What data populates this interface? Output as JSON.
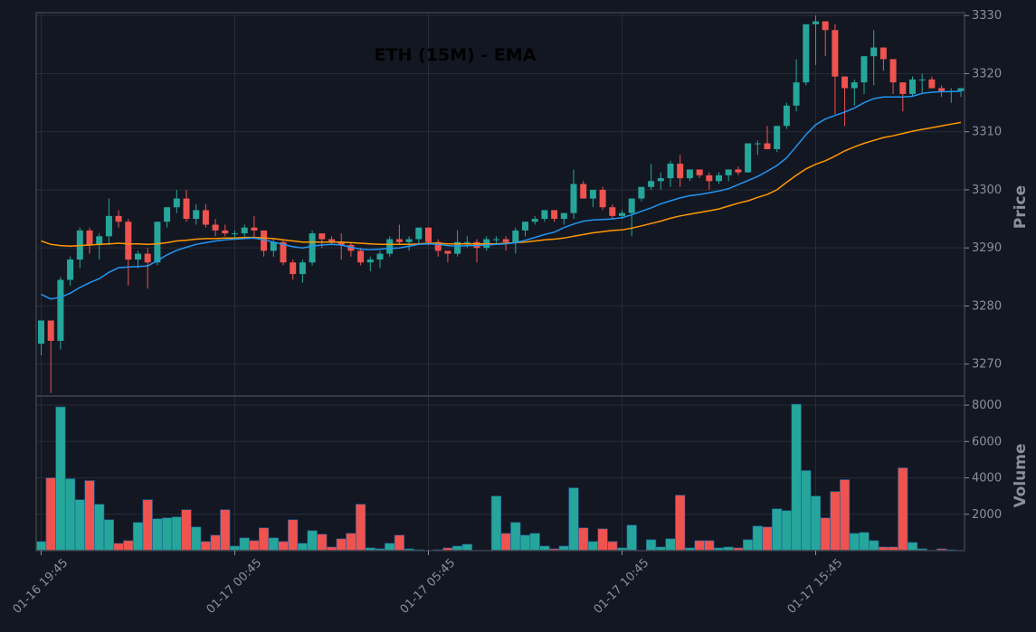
{
  "chart_data": {
    "type": "candlestick",
    "title": "ETH (15M) - EMA",
    "ylabel_price": "Price",
    "ylabel_volume": "Volume",
    "price_ylim": [
      3264.5,
      3330.5
    ],
    "price_ticks": [
      3270,
      3280,
      3290,
      3300,
      3310,
      3320,
      3330
    ],
    "volume_ylim": [
      0,
      8500
    ],
    "volume_ticks": [
      2000,
      4000,
      6000,
      8000
    ],
    "x_tick_labels": [
      {
        "index": 0,
        "label": "01-16 19:45"
      },
      {
        "index": 20,
        "label": "01-17 00:45"
      },
      {
        "index": 40,
        "label": "01-17 05:45"
      },
      {
        "index": 60,
        "label": "01-17 10:45"
      },
      {
        "index": 80,
        "label": "01-17 15:45"
      }
    ],
    "grid": true,
    "colors": {
      "up": "#26a69a",
      "down": "#ef5350",
      "ema_fast": "#2196f3",
      "ema_slow": "#ff9800",
      "background": "#131722"
    },
    "candles": [
      [
        3273.5,
        3277.5,
        3271.5,
        3277.5
      ],
      [
        3277.5,
        3277.5,
        3265,
        3274
      ],
      [
        3274,
        3285,
        3272.5,
        3284.5
      ],
      [
        3284.5,
        3288.5,
        3283.5,
        3288
      ],
      [
        3288,
        3293.5,
        3286.5,
        3293
      ],
      [
        3293,
        3293.5,
        3289,
        3290.5
      ],
      [
        3290.5,
        3292.5,
        3288,
        3292
      ],
      [
        3292,
        3298.5,
        3290.5,
        3295.5
      ],
      [
        3295.5,
        3296.5,
        3293.5,
        3294.5
      ],
      [
        3294.5,
        3295,
        3283.5,
        3288
      ],
      [
        3288,
        3289.5,
        3286.5,
        3289
      ],
      [
        3289,
        3290,
        3283,
        3287.5
      ],
      [
        3287.5,
        3294.5,
        3287,
        3294.5
      ],
      [
        3294.5,
        3297,
        3293.5,
        3297
      ],
      [
        3297,
        3300,
        3296,
        3298.5
      ],
      [
        3298.5,
        3300,
        3294.5,
        3295
      ],
      [
        3295,
        3297.5,
        3294,
        3296.5
      ],
      [
        3296.5,
        3297.5,
        3293.5,
        3294
      ],
      [
        3294,
        3295,
        3292,
        3293
      ],
      [
        3293,
        3294,
        3292,
        3292.5
      ],
      [
        3292.5,
        3293,
        3291.5,
        3292.5
      ],
      [
        3292.5,
        3294,
        3292,
        3293.5
      ],
      [
        3293.5,
        3295.5,
        3291.5,
        3293
      ],
      [
        3293,
        3293,
        3288.5,
        3289.5
      ],
      [
        3289.5,
        3291.5,
        3288.5,
        3291
      ],
      [
        3291,
        3291.5,
        3287,
        3287.5
      ],
      [
        3287.5,
        3288,
        3284.5,
        3285.5
      ],
      [
        3285.5,
        3288,
        3284,
        3287.5
      ],
      [
        3287.5,
        3293,
        3287,
        3292.5
      ],
      [
        3292.5,
        3292.5,
        3290,
        3291.5
      ],
      [
        3291.5,
        3292,
        3290.5,
        3291
      ],
      [
        3291,
        3292.5,
        3288,
        3290.5
      ],
      [
        3290.5,
        3291,
        3288.5,
        3289.5
      ],
      [
        3289.5,
        3290,
        3287,
        3287.5
      ],
      [
        3287.5,
        3288.5,
        3286,
        3288
      ],
      [
        3288,
        3289.5,
        3286.5,
        3289
      ],
      [
        3289,
        3292,
        3288.5,
        3291.5
      ],
      [
        3291.5,
        3294,
        3290.5,
        3291
      ],
      [
        3291,
        3292,
        3289.5,
        3291.5
      ],
      [
        3291.5,
        3293.5,
        3290.5,
        3293.5
      ],
      [
        3293.5,
        3293.5,
        3290.5,
        3291
      ],
      [
        3291,
        3291.5,
        3288.5,
        3289.5
      ],
      [
        3289.5,
        3289.5,
        3287.5,
        3289
      ],
      [
        3289,
        3293,
        3288.5,
        3291
      ],
      [
        3291,
        3292,
        3290,
        3291
      ],
      [
        3291,
        3291.5,
        3287.5,
        3290
      ],
      [
        3290,
        3292,
        3289.5,
        3291.5
      ],
      [
        3291.5,
        3292,
        3290.5,
        3291.5
      ],
      [
        3291.5,
        3292,
        3289.5,
        3291
      ],
      [
        3291,
        3293.5,
        3289,
        3293
      ],
      [
        3293,
        3294.5,
        3292,
        3294.5
      ],
      [
        3294.5,
        3295.5,
        3294,
        3295
      ],
      [
        3295,
        3296.5,
        3294.5,
        3296.5
      ],
      [
        3296.5,
        3296.5,
        3294.5,
        3295
      ],
      [
        3295,
        3296,
        3294,
        3296
      ],
      [
        3296,
        3303.5,
        3295,
        3301
      ],
      [
        3301,
        3301.5,
        3298.5,
        3298.5
      ],
      [
        3298.5,
        3300,
        3297,
        3300
      ],
      [
        3300,
        3300.5,
        3296.5,
        3297
      ],
      [
        3297,
        3297.5,
        3295,
        3295.5
      ],
      [
        3295.5,
        3296.5,
        3295,
        3296
      ],
      [
        3296,
        3298.5,
        3292,
        3298.5
      ],
      [
        3298.5,
        3300.5,
        3298,
        3300.5
      ],
      [
        3300.5,
        3304.5,
        3300,
        3301.5
      ],
      [
        3301.5,
        3303,
        3300,
        3302
      ],
      [
        3302,
        3305,
        3300.5,
        3304.5
      ],
      [
        3304.5,
        3306,
        3300.5,
        3302
      ],
      [
        3302,
        3303.5,
        3301.5,
        3303.5
      ],
      [
        3303.5,
        3303.5,
        3302,
        3302.5
      ],
      [
        3302.5,
        3303,
        3300,
        3301.5
      ],
      [
        3301.5,
        3303,
        3301,
        3302.5
      ],
      [
        3302.5,
        3303.5,
        3301.5,
        3303.5
      ],
      [
        3303.5,
        3304,
        3302.5,
        3303
      ],
      [
        3303,
        3308,
        3303,
        3308
      ],
      [
        3308,
        3308.5,
        3306,
        3308
      ],
      [
        3308,
        3311,
        3307,
        3307
      ],
      [
        3307,
        3311,
        3306.5,
        3311
      ],
      [
        3311,
        3315,
        3310.5,
        3314.5
      ],
      [
        3314.5,
        3322.5,
        3313.5,
        3318.5
      ],
      [
        3318.5,
        3328.5,
        3318,
        3328.5
      ],
      [
        3328.5,
        3330,
        3321.5,
        3329
      ],
      [
        3329,
        3329,
        3323,
        3327.5
      ],
      [
        3327.5,
        3328.5,
        3313,
        3319.5
      ],
      [
        3319.5,
        3319.5,
        3311,
        3317.5
      ],
      [
        3317.5,
        3319,
        3314.5,
        3318.5
      ],
      [
        3318.5,
        3323,
        3316.5,
        3323
      ],
      [
        3323,
        3327.5,
        3318,
        3324.5
      ],
      [
        3324.5,
        3324.5,
        3320.5,
        3322.5
      ],
      [
        3322.5,
        3322.5,
        3316.5,
        3318.5
      ],
      [
        3318.5,
        3318.5,
        3313.5,
        3316.5
      ],
      [
        3316.5,
        3319.5,
        3316,
        3319
      ],
      [
        3319,
        3320,
        3316.5,
        3319
      ],
      [
        3319,
        3319.5,
        3317.5,
        3317.5
      ],
      [
        3317.5,
        3318,
        3316,
        3317
      ],
      [
        3317,
        3317.5,
        3315,
        3317
      ],
      [
        3317,
        3317.5,
        3316,
        3317.5
      ]
    ],
    "volume": [
      500,
      4000,
      7900,
      3950,
      2800,
      3850,
      2550,
      1700,
      400,
      550,
      1550,
      2800,
      1750,
      1800,
      1850,
      2250,
      1300,
      500,
      850,
      2250,
      250,
      700,
      550,
      1250,
      700,
      500,
      1700,
      400,
      1100,
      900,
      200,
      650,
      950,
      2550,
      150,
      100,
      400,
      850,
      100,
      50,
      0,
      50,
      150,
      250,
      350,
      0,
      0,
      3000,
      950,
      1550,
      850,
      950,
      250,
      100,
      250,
      3450,
      1250,
      500,
      1200,
      500,
      150,
      1400,
      0,
      600,
      200,
      650,
      3050,
      150,
      550,
      550,
      150,
      200,
      150,
      600,
      1350,
      1300,
      2300,
      2200,
      8050,
      4400,
      3000,
      1800,
      3250,
      3900,
      950,
      1000,
      550,
      200,
      200,
      4550,
      450,
      100,
      0,
      100,
      50,
      0
    ],
    "ema_fast": [
      3282,
      3281.2,
      3281.5,
      3282.2,
      3283.2,
      3284,
      3284.7,
      3285.8,
      3286.6,
      3286.7,
      3286.8,
      3286.9,
      3287.8,
      3288.8,
      3289.6,
      3290.1,
      3290.6,
      3290.9,
      3291.2,
      3291.4,
      3291.5,
      3291.6,
      3291.7,
      3291.4,
      3291,
      3290.6,
      3290.2,
      3290,
      3290.3,
      3290.5,
      3290.6,
      3290.5,
      3290.1,
      3289.8,
      3289.7,
      3289.8,
      3289.9,
      3290,
      3290.3,
      3290.6,
      3290.7,
      3290.6,
      3290.4,
      3290.3,
      3290.4,
      3290.4,
      3290.5,
      3290.6,
      3290.7,
      3290.9,
      3291.3,
      3291.8,
      3292.3,
      3292.7,
      3293.5,
      3294.1,
      3294.6,
      3294.8,
      3294.9,
      3295,
      3295.2,
      3295.7,
      3296.3,
      3296.9,
      3297.6,
      3298.1,
      3298.6,
      3299,
      3299.2,
      3299.5,
      3299.8,
      3300.2,
      3300.9,
      3301.6,
      3302.3,
      3303.2,
      3304.2,
      3305.5,
      3307.5,
      3309.5,
      3311.2,
      3312.2,
      3312.8,
      3313.4,
      3314.1,
      3315,
      3315.7,
      3316,
      3316,
      3316,
      3316.1,
      3316.6,
      3316.8,
      3316.9,
      3316.9,
      3317
    ],
    "ema_slow": [
      3291.2,
      3290.6,
      3290.4,
      3290.3,
      3290.4,
      3290.5,
      3290.6,
      3290.7,
      3290.8,
      3290.7,
      3290.7,
      3290.6,
      3290.7,
      3290.9,
      3291.2,
      3291.3,
      3291.5,
      3291.6,
      3291.6,
      3291.7,
      3291.7,
      3291.8,
      3291.8,
      3291.7,
      3291.6,
      3291.4,
      3291.2,
      3291,
      3291,
      3291,
      3291,
      3291,
      3290.9,
      3290.8,
      3290.7,
      3290.6,
      3290.6,
      3290.6,
      3290.6,
      3290.7,
      3290.8,
      3290.8,
      3290.7,
      3290.7,
      3290.7,
      3290.7,
      3290.7,
      3290.7,
      3290.8,
      3290.9,
      3291,
      3291.2,
      3291.4,
      3291.5,
      3291.7,
      3292,
      3292.3,
      3292.6,
      3292.8,
      3293,
      3293.1,
      3293.4,
      3293.8,
      3294.2,
      3294.6,
      3295.1,
      3295.5,
      3295.8,
      3296.1,
      3296.4,
      3296.7,
      3297.2,
      3297.7,
      3298.1,
      3298.7,
      3299.2,
      3300,
      3301.3,
      3302.5,
      3303.6,
      3304.4,
      3305,
      3305.8,
      3306.7,
      3307.4,
      3308,
      3308.5,
      3309,
      3309.3,
      3309.7,
      3310.1,
      3310.4,
      3310.7,
      3311,
      3311.3,
      3311.6
    ]
  }
}
